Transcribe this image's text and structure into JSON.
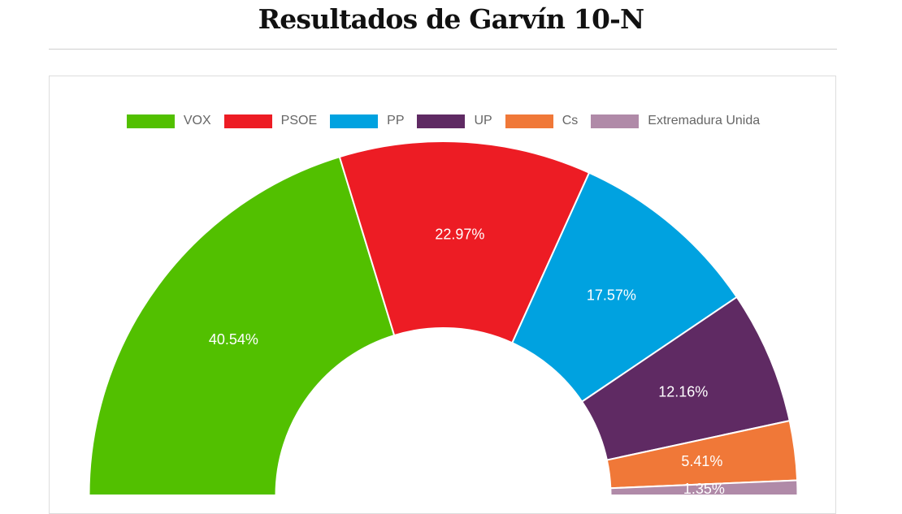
{
  "page": {
    "title": "Resultados de Garvín 10-N"
  },
  "chart_data": {
    "type": "pie",
    "variant": "half-donut",
    "legend_position": "top",
    "categories": [
      "VOX",
      "PSOE",
      "PP",
      "UP",
      "Cs",
      "Extremadura Unida"
    ],
    "values": [
      40.54,
      22.97,
      17.57,
      12.16,
      5.41,
      1.35
    ],
    "labels": [
      "40.54%",
      "22.97%",
      "17.57%",
      "12.16%",
      "5.41%",
      "1.35%"
    ],
    "colors": [
      "#52c000",
      "#ed1c24",
      "#00a2e0",
      "#5f2a63",
      "#f07838",
      "#b08aa8"
    ]
  }
}
